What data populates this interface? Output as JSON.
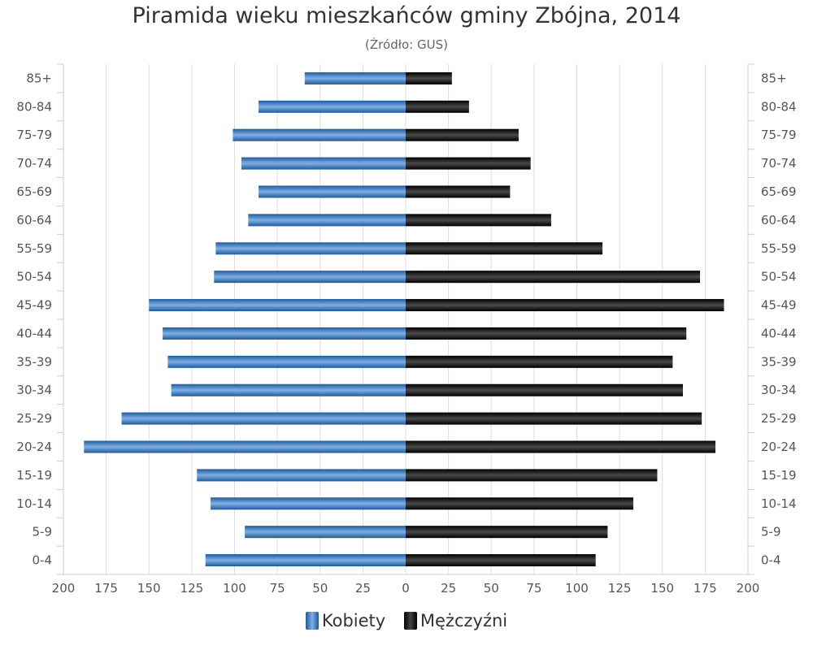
{
  "title": "Piramida wieku mieszkańców gminy Zbójna, 2014",
  "subtitle": "(Źródło: GUS)",
  "legend": {
    "kobiety": "Kobiety",
    "mezczyzni": "Mężczyźni"
  },
  "colors": {
    "kobiety_dark": "#1f5a9c",
    "kobiety_light": "#7fb0e6",
    "mezczyzni_dark": "#000000",
    "mezczyzni_light": "#4a4a4a",
    "grid": "#dddddd",
    "axis": "#c0d0e0"
  },
  "chart_data": {
    "type": "bar",
    "orientation": "horizontal-pyramid",
    "categories": [
      "85+",
      "80-84",
      "75-79",
      "70-74",
      "65-69",
      "60-64",
      "55-59",
      "50-54",
      "45-49",
      "40-44",
      "35-39",
      "30-34",
      "25-29",
      "20-24",
      "15-19",
      "10-14",
      "5-9",
      "0-4"
    ],
    "series": [
      {
        "name": "Kobiety",
        "values": [
          59,
          86,
          101,
          96,
          86,
          92,
          111,
          112,
          150,
          142,
          139,
          137,
          166,
          188,
          122,
          114,
          94,
          117
        ]
      },
      {
        "name": "Mężczyźni",
        "values": [
          27,
          37,
          66,
          73,
          61,
          85,
          115,
          172,
          186,
          164,
          156,
          162,
          173,
          181,
          147,
          133,
          118,
          111
        ]
      }
    ],
    "xlim": [
      -200,
      200
    ],
    "x_ticks": [
      200,
      175,
      150,
      125,
      100,
      75,
      50,
      25,
      0,
      25,
      50,
      75,
      100,
      125,
      150,
      175,
      200
    ],
    "grid": true,
    "legend_position": "bottom-center"
  }
}
